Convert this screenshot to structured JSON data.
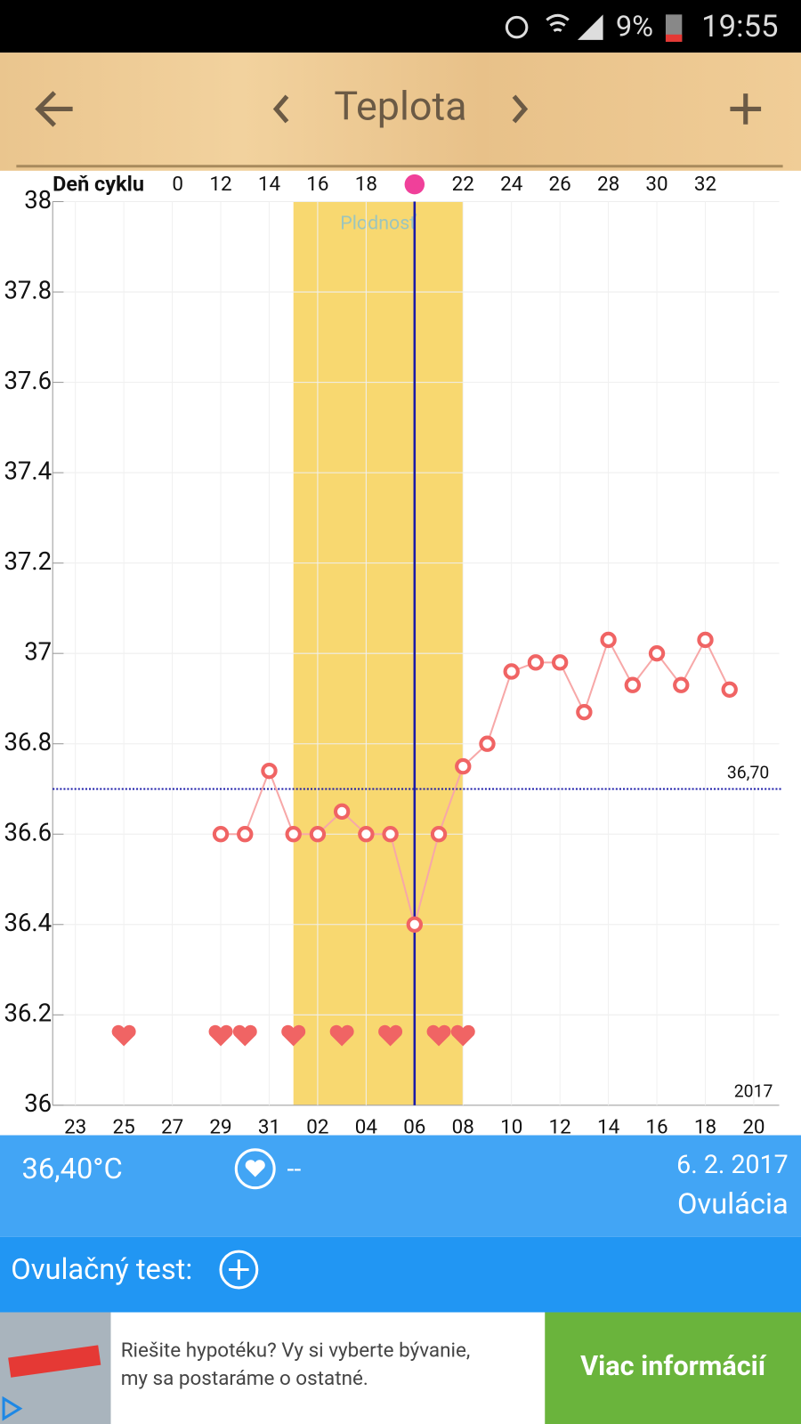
{
  "status_bar": {
    "battery": "9%",
    "time": "19:55"
  },
  "header": {
    "title": "Teplota"
  },
  "chart_data": {
    "type": "line",
    "cycle_day_label": "Deň cyklu",
    "categories": [
      "23",
      null,
      "25",
      null,
      "27",
      null,
      "29",
      null,
      "31",
      null,
      "02",
      null,
      "04",
      null,
      "06",
      null,
      "08",
      null,
      "10",
      null,
      "12",
      null,
      "14",
      null,
      "16",
      null,
      "18",
      null,
      "20"
    ],
    "cycle_days": [
      null,
      null,
      null,
      null,
      0,
      null,
      12,
      null,
      14,
      null,
      16,
      null,
      18,
      null,
      null,
      null,
      22,
      null,
      24,
      null,
      26,
      null,
      28,
      null,
      30,
      null,
      32,
      null,
      null
    ],
    "values": [
      null,
      null,
      null,
      null,
      null,
      null,
      36.6,
      36.6,
      36.74,
      36.6,
      36.6,
      36.65,
      36.6,
      36.6,
      36.4,
      36.6,
      36.75,
      36.8,
      36.96,
      36.98,
      36.98,
      36.87,
      37.03,
      36.93,
      37.0,
      36.93,
      37.03,
      36.92,
      null
    ],
    "hearts": [
      false,
      false,
      true,
      false,
      false,
      false,
      true,
      true,
      false,
      true,
      false,
      true,
      false,
      true,
      false,
      true,
      true,
      false,
      false,
      false,
      false,
      false,
      false,
      false,
      false,
      false,
      false,
      false,
      false
    ],
    "color": "#f06464",
    "line_color": "#f7a8a8",
    "ylim": [
      36,
      38
    ],
    "yticks": [
      36,
      36.2,
      36.4,
      36.6,
      36.8,
      37,
      37.2,
      37.4,
      37.6,
      37.8,
      38
    ],
    "grid": true,
    "coverline": {
      "value": 36.7,
      "label": "36,70"
    },
    "fertile_annotation": "Plodnosť",
    "fertile_range": [
      9,
      16
    ],
    "ovulation_index": 14,
    "year": "2017"
  },
  "summary": {
    "temperature": "36,40°C",
    "note": "--",
    "date": "6. 2. 2017",
    "status": "Ovulácia"
  },
  "ovulation_test": {
    "label": "Ovulačný test:"
  },
  "ad": {
    "lines": [
      "Riešite hypotéku? Vy si vyberte bývanie,",
      "my sa postaráme o ostatné."
    ],
    "button": "Viac informácií"
  }
}
